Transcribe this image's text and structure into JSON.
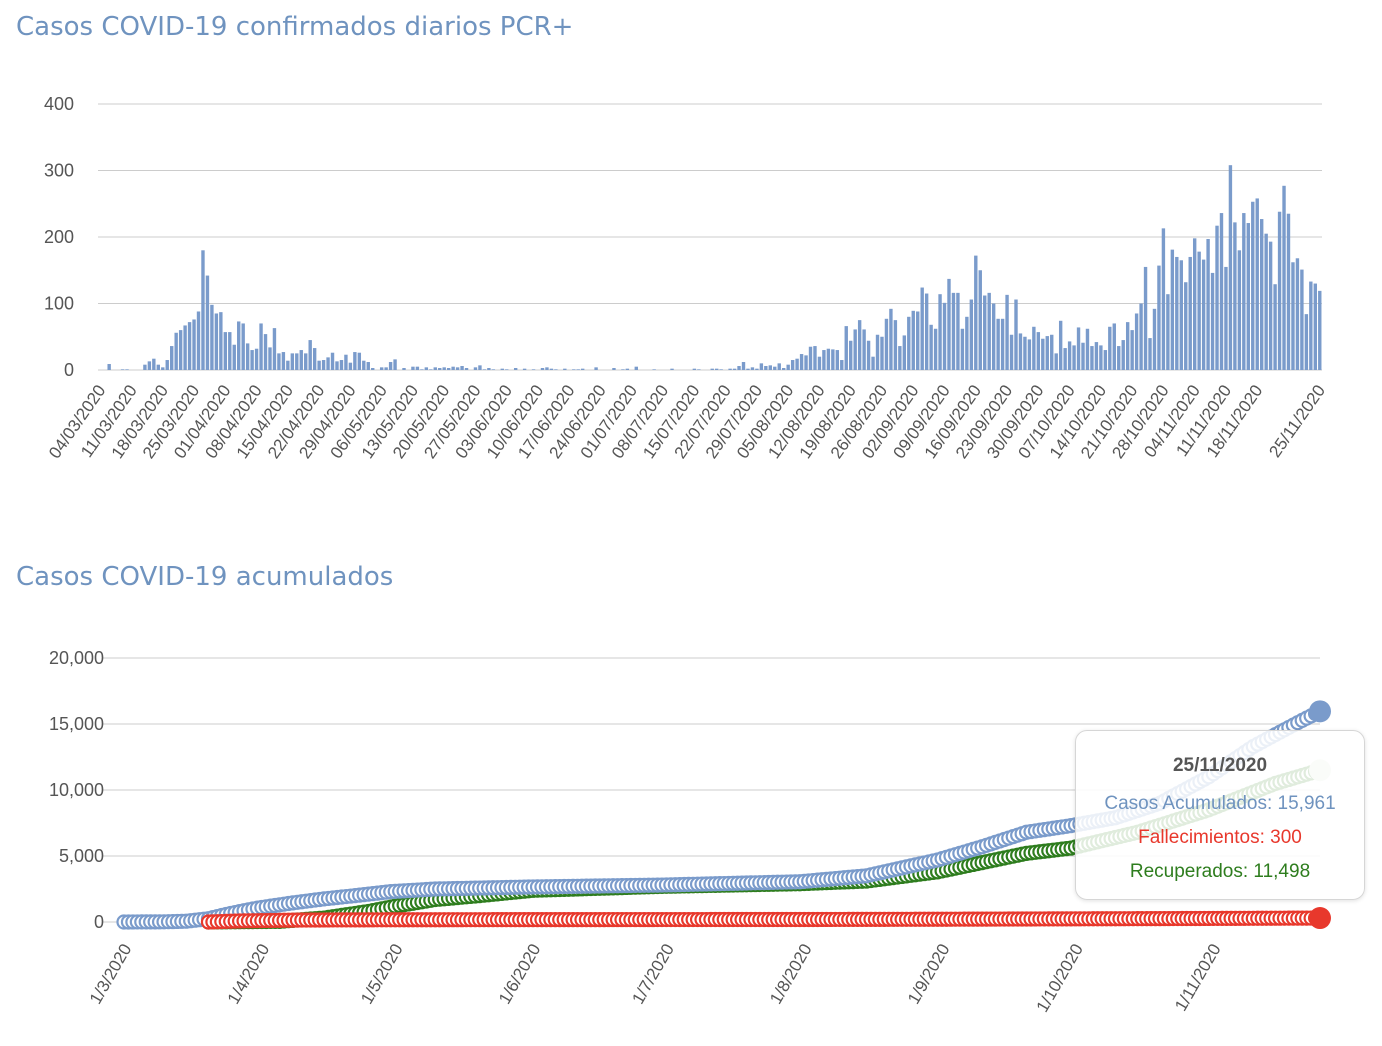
{
  "chart_data": [
    {
      "type": "bar",
      "title": "Casos COVID-19 confirmados diarios PCR+",
      "ylim": [
        0,
        400
      ],
      "yticks": [
        0,
        100,
        200,
        300,
        400
      ],
      "grid": true,
      "color": "#7a9bcb",
      "start_date": "04/03/2020",
      "categories_labels": [
        "04/03/2020",
        "11/03/2020",
        "18/03/2020",
        "25/03/2020",
        "01/04/2020",
        "08/04/2020",
        "15/04/2020",
        "22/04/2020",
        "29/04/2020",
        "06/05/2020",
        "13/05/2020",
        "20/05/2020",
        "27/05/2020",
        "03/06/2020",
        "10/06/2020",
        "17/06/2020",
        "24/06/2020",
        "01/07/2020",
        "08/07/2020",
        "15/07/2020",
        "22/07/2020",
        "29/07/2020",
        "05/08/2020",
        "12/08/2020",
        "19/08/2020",
        "26/08/2020",
        "02/09/2020",
        "09/09/2020",
        "16/09/2020",
        "23/09/2020",
        "30/09/2020",
        "07/10/2020",
        "14/10/2020",
        "21/10/2020",
        "28/10/2020",
        "04/11/2020",
        "11/11/2020",
        "18/11/2020",
        "25/11/2020"
      ],
      "values": [
        0,
        0,
        9,
        0,
        0,
        1,
        1,
        0,
        0,
        0,
        8,
        13,
        17,
        8,
        4,
        15,
        36,
        56,
        60,
        67,
        72,
        76,
        88,
        180,
        142,
        98,
        85,
        87,
        57,
        57,
        38,
        73,
        70,
        40,
        30,
        32,
        70,
        54,
        34,
        63,
        25,
        27,
        14,
        25,
        25,
        30,
        25,
        45,
        33,
        14,
        15,
        19,
        26,
        13,
        15,
        23,
        11,
        27,
        26,
        14,
        12,
        3,
        0,
        4,
        4,
        12,
        16,
        0,
        3,
        0,
        5,
        5,
        1,
        4,
        1,
        4,
        3,
        4,
        3,
        5,
        4,
        6,
        3,
        0,
        4,
        7,
        1,
        3,
        1,
        0,
        2,
        1,
        0,
        3,
        0,
        2,
        0,
        1,
        0,
        3,
        4,
        2,
        1,
        0,
        2,
        0,
        1,
        1,
        2,
        0,
        0,
        4,
        0,
        0,
        0,
        3,
        0,
        1,
        2,
        0,
        5,
        0,
        0,
        0,
        1,
        0,
        0,
        0,
        2,
        0,
        0,
        0,
        0,
        2,
        1,
        0,
        0,
        2,
        2,
        1,
        0,
        2,
        2,
        6,
        12,
        2,
        4,
        2,
        10,
        6,
        7,
        5,
        10,
        3,
        8,
        15,
        17,
        24,
        22,
        35,
        36,
        20,
        30,
        32,
        31,
        30,
        15,
        66,
        44,
        61,
        75,
        61,
        44,
        20,
        53,
        50,
        77,
        92,
        75,
        36,
        52,
        80,
        89,
        88,
        124,
        115,
        68,
        62,
        114,
        101,
        137,
        116,
        116,
        62,
        80,
        106,
        172,
        150,
        112,
        116,
        100,
        77,
        77,
        113,
        53,
        106,
        55,
        50,
        46,
        65,
        57,
        47,
        51,
        53,
        25,
        74,
        33,
        43,
        37,
        64,
        41,
        62,
        36,
        42,
        37,
        30,
        65,
        70,
        36,
        45,
        72,
        60,
        85,
        100,
        155,
        48,
        92,
        157,
        213,
        114,
        181,
        170,
        165,
        132,
        170,
        198,
        178,
        166,
        197,
        146,
        217,
        236,
        155,
        308,
        222,
        180,
        236,
        221,
        253,
        258,
        227,
        205,
        193,
        129,
        238,
        277,
        235,
        162,
        168,
        151,
        84,
        133,
        130,
        119
      ]
    },
    {
      "type": "scatter",
      "title": "Casos COVID-19 acumulados",
      "ylim": [
        0,
        20000
      ],
      "yticks": [
        0,
        5000,
        10000,
        15000,
        20000
      ],
      "ytick_labels": [
        "0",
        "5,000",
        "10,000",
        "15,000",
        "20,000"
      ],
      "grid": true,
      "x_labels": [
        "1/3/2020",
        "1/4/2020",
        "1/5/2020",
        "1/6/2020",
        "1/7/2020",
        "1/8/2020",
        "1/9/2020",
        "1/10/2020",
        "1/11/2020"
      ],
      "x_label_dates": [
        "2020-03-01",
        "2020-04-01",
        "2020-05-01",
        "2020-06-01",
        "2020-07-01",
        "2020-08-01",
        "2020-09-01",
        "2020-10-01",
        "2020-11-01"
      ],
      "x_range": [
        "2020-03-01",
        "2020-11-25"
      ],
      "series": [
        {
          "name": "Casos Acumulados",
          "color": "#7a9bcb",
          "points": [
            [
              "2020-03-01",
              0
            ],
            [
              "2020-03-10",
              15
            ],
            [
              "2020-03-15",
              60
            ],
            [
              "2020-03-20",
              250
            ],
            [
              "2020-03-25",
              650
            ],
            [
              "2020-03-31",
              1050
            ],
            [
              "2020-04-08",
              1450
            ],
            [
              "2020-04-15",
              1750
            ],
            [
              "2020-04-22",
              2000
            ],
            [
              "2020-04-30",
              2300
            ],
            [
              "2020-05-10",
              2500
            ],
            [
              "2020-05-31",
              2650
            ],
            [
              "2020-06-30",
              2800
            ],
            [
              "2020-07-31",
              3050
            ],
            [
              "2020-08-15",
              3500
            ],
            [
              "2020-08-31",
              4700
            ],
            [
              "2020-09-10",
              5700
            ],
            [
              "2020-09-20",
              6800
            ],
            [
              "2020-09-30",
              7300
            ],
            [
              "2020-10-10",
              7900
            ],
            [
              "2020-10-20",
              9000
            ],
            [
              "2020-10-31",
              11000
            ],
            [
              "2020-11-10",
              13300
            ],
            [
              "2020-11-20",
              15100
            ],
            [
              "2020-11-25",
              15961
            ]
          ]
        },
        {
          "name": "Fallecimientos",
          "color": "#e8382c",
          "points": [
            [
              "2020-03-20",
              0
            ],
            [
              "2020-03-27",
              80
            ],
            [
              "2020-04-10",
              150
            ],
            [
              "2020-05-01",
              170
            ],
            [
              "2020-06-01",
              180
            ],
            [
              "2020-08-01",
              190
            ],
            [
              "2020-09-01",
              210
            ],
            [
              "2020-10-01",
              240
            ],
            [
              "2020-11-01",
              270
            ],
            [
              "2020-11-25",
              300
            ]
          ]
        },
        {
          "name": "Recuperados",
          "color": "#2e7d1e",
          "points": [
            [
              "2020-03-20",
              0
            ],
            [
              "2020-04-05",
              50
            ],
            [
              "2020-04-15",
              300
            ],
            [
              "2020-04-25",
              800
            ],
            [
              "2020-05-01",
              1200
            ],
            [
              "2020-05-10",
              1700
            ],
            [
              "2020-05-20",
              2000
            ],
            [
              "2020-06-01",
              2400
            ],
            [
              "2020-06-30",
              2700
            ],
            [
              "2020-07-31",
              2900
            ],
            [
              "2020-08-15",
              3100
            ],
            [
              "2020-08-31",
              3800
            ],
            [
              "2020-09-10",
              4500
            ],
            [
              "2020-09-20",
              5200
            ],
            [
              "2020-09-30",
              5600
            ],
            [
              "2020-10-15",
              6800
            ],
            [
              "2020-10-31",
              8500
            ],
            [
              "2020-11-15",
              10500
            ],
            [
              "2020-11-25",
              11498
            ]
          ]
        }
      ],
      "tooltip": {
        "date": "25/11/2020",
        "line1": "Casos Acumulados: 15,961",
        "line2": "Fallecimientos: 300",
        "line3": "Recuperados: 11,498"
      }
    }
  ]
}
